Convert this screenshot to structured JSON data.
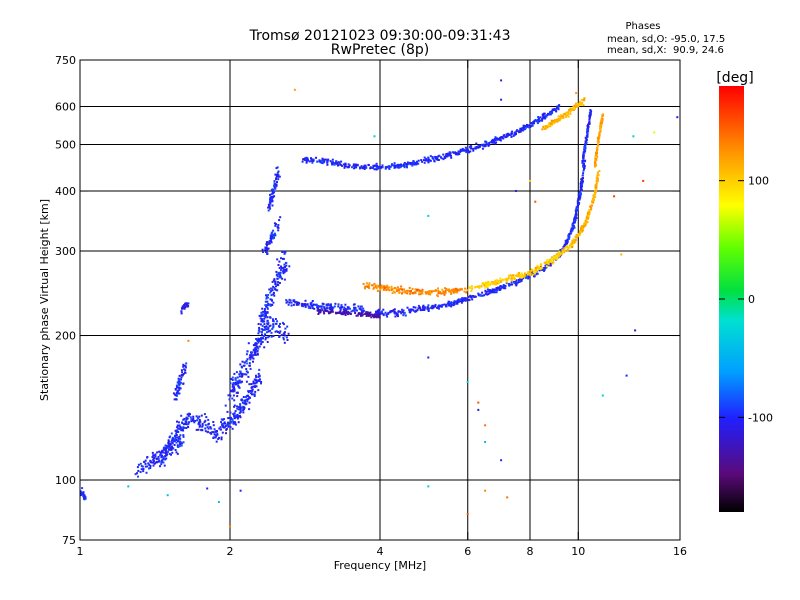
{
  "chart_data": {
    "type": "scatter",
    "title": "Tromsø 20121023 09:30:00-09:31:43",
    "subtitle": "RwPretec (8p)",
    "xlabel": "Frequency [MHz]",
    "ylabel": "Stationary phase Virtual Height [km]",
    "x_scale": "log",
    "y_scale": "log",
    "xlim": [
      1,
      16
    ],
    "ylim": [
      75,
      750
    ],
    "x_ticks": [
      1,
      2,
      4,
      6,
      8,
      10,
      16
    ],
    "y_ticks": [
      75,
      100,
      200,
      300,
      400,
      500,
      600,
      750
    ],
    "x_gridlines": [
      2,
      4,
      6,
      8,
      10
    ],
    "y_gridlines": [
      100,
      200,
      300,
      400,
      500,
      600
    ],
    "grid": true,
    "phase_stats": {
      "heading": "Phases",
      "line_o": "mean, sd,O: -95.0, 17.5",
      "line_x": "mean, sd,X:  90.9, 24.6"
    },
    "colorbar": {
      "label": "[deg]",
      "range": [
        -180,
        180
      ],
      "ticks": [
        100,
        0,
        -100
      ],
      "colormap": "rainbow"
    },
    "series": [
      {
        "traces": [
          {
            "f": [
              1.0,
              1.03
            ],
            "h": [
              95,
              91
            ],
            "phase": -100,
            "spread": 0.03
          },
          {
            "f": [
              1.3,
              1.45,
              1.6
            ],
            "h": [
              105,
              112,
              120
            ],
            "phase": -100,
            "spread": 0.05
          },
          {
            "f": [
              1.45,
              1.65,
              1.9
            ],
            "h": [
              110,
              135,
              125
            ],
            "phase": -100,
            "spread": 0.07
          },
          {
            "f": [
              1.55,
              1.62
            ],
            "h": [
              150,
              170
            ],
            "phase": -100,
            "spread": 0.05
          },
          {
            "f": [
              1.6,
              1.65
            ],
            "h": [
              225,
              235
            ],
            "phase": -110,
            "spread": 0.02
          },
          {
            "f": [
              1.9,
              2.1,
              2.3
            ],
            "h": [
              125,
              140,
              165
            ],
            "phase": -100,
            "spread": 0.06
          },
          {
            "f": [
              2.0,
              2.2,
              2.4,
              2.6
            ],
            "h": [
              150,
              180,
              210,
              200
            ],
            "phase": -100,
            "spread": 0.08
          },
          {
            "f": [
              2.3,
              2.45,
              2.6
            ],
            "h": [
              210,
              250,
              290
            ],
            "phase": -100,
            "spread": 0.08
          },
          {
            "f": [
              2.35,
              2.5
            ],
            "h": [
              300,
              340
            ],
            "phase": -100,
            "spread": 0.05
          },
          {
            "f": [
              2.4,
              2.5
            ],
            "h": [
              370,
              440
            ],
            "phase": -100,
            "spread": 0.04
          },
          {
            "f": [
              2.6,
              3.0,
              3.5,
              4.0,
              4.5
            ],
            "h": [
              235,
              230,
              228,
              222,
              223
            ],
            "phase": -100,
            "spread": 0.025
          },
          {
            "f": [
              3.0,
              3.5,
              4.0
            ],
            "h": [
              225,
              222,
              220
            ],
            "phase": -130,
            "spread": 0.015
          },
          {
            "f": [
              4.5,
              5.5,
              6.5,
              7.5,
              8.5
            ],
            "h": [
              225,
              232,
              245,
              258,
              275
            ],
            "phase": -100,
            "spread": 0.02
          },
          {
            "f": [
              8.5,
              9.3,
              9.8,
              10.1,
              10.3
            ],
            "h": [
              275,
              300,
              340,
              400,
              460
            ],
            "phase": -100,
            "spread": 0.02
          },
          {
            "f": [
              10.2,
              10.4,
              10.6
            ],
            "h": [
              460,
              520,
              590
            ],
            "phase": -100,
            "spread": 0.015
          },
          {
            "f": [
              3.7,
              4.2,
              5.0,
              6.0
            ],
            "h": [
              255,
              250,
              245,
              250
            ],
            "phase": 130,
            "spread": 0.025
          },
          {
            "f": [
              6.0,
              7.0,
              8.0,
              9.0,
              9.7
            ],
            "h": [
              250,
              260,
              270,
              290,
              310
            ],
            "phase": 100,
            "spread": 0.02
          },
          {
            "f": [
              9.7,
              10.3,
              10.7,
              11.0
            ],
            "h": [
              310,
              340,
              380,
              440
            ],
            "phase": 110,
            "spread": 0.02
          },
          {
            "f": [
              10.8,
              11.0,
              11.2
            ],
            "h": [
              450,
              520,
              580
            ],
            "phase": 120,
            "spread": 0.015
          },
          {
            "f": [
              2.8,
              3.2,
              3.5,
              4.0,
              4.5,
              5.0,
              5.5
            ],
            "h": [
              465,
              460,
              450,
              448,
              452,
              465,
              475
            ],
            "phase": -100,
            "spread": 0.02
          },
          {
            "f": [
              5.5,
              6.5,
              7.5,
              8.5,
              9.2
            ],
            "h": [
              475,
              500,
              530,
              570,
              600
            ],
            "phase": -100,
            "spread": 0.02
          },
          {
            "f": [
              8.5,
              9.5,
              10.3
            ],
            "h": [
              540,
              580,
              620
            ],
            "phase": 110,
            "spread": 0.02
          }
        ],
        "scattered_points": [
          {
            "f": 2.7,
            "h": 650,
            "phase": 120
          },
          {
            "f": 7.0,
            "h": 680,
            "phase": -110
          },
          {
            "f": 5.0,
            "h": 355,
            "phase": -30
          },
          {
            "f": 5.0,
            "h": 180,
            "phase": -100
          },
          {
            "f": 6.0,
            "h": 160,
            "phase": -30
          },
          {
            "f": 6.3,
            "h": 145,
            "phase": 150
          },
          {
            "f": 6.3,
            "h": 140,
            "phase": -110
          },
          {
            "f": 6.5,
            "h": 130,
            "phase": 140
          },
          {
            "f": 6.5,
            "h": 120,
            "phase": -40
          },
          {
            "f": 7.0,
            "h": 110,
            "phase": -100
          },
          {
            "f": 6.5,
            "h": 95,
            "phase": 130
          },
          {
            "f": 7.2,
            "h": 92,
            "phase": 140
          },
          {
            "f": 6.0,
            "h": 85,
            "phase": 150
          },
          {
            "f": 5.0,
            "h": 97,
            "phase": -30
          },
          {
            "f": 12.2,
            "h": 295,
            "phase": 110
          },
          {
            "f": 11.8,
            "h": 390,
            "phase": 160
          },
          {
            "f": 12.9,
            "h": 520,
            "phase": -30
          },
          {
            "f": 13.5,
            "h": 420,
            "phase": 160
          },
          {
            "f": 14.2,
            "h": 530,
            "phase": 70
          },
          {
            "f": 15.8,
            "h": 570,
            "phase": -110
          },
          {
            "f": 13.0,
            "h": 205,
            "phase": -120
          },
          {
            "f": 12.5,
            "h": 165,
            "phase": -100
          },
          {
            "f": 11.2,
            "h": 150,
            "phase": -30
          },
          {
            "f": 8.0,
            "h": 420,
            "phase": 100
          },
          {
            "f": 8.2,
            "h": 380,
            "phase": 150
          },
          {
            "f": 7.5,
            "h": 400,
            "phase": -100
          },
          {
            "f": 2.1,
            "h": 95,
            "phase": -100
          },
          {
            "f": 1.9,
            "h": 90,
            "phase": -40
          },
          {
            "f": 1.8,
            "h": 96,
            "phase": -100
          },
          {
            "f": 2.0,
            "h": 80,
            "phase": 130
          },
          {
            "f": 1.5,
            "h": 93,
            "phase": -40
          },
          {
            "f": 1.25,
            "h": 97,
            "phase": -40
          },
          {
            "f": 1.65,
            "h": 195,
            "phase": 130
          },
          {
            "f": 7.0,
            "h": 620,
            "phase": -100
          },
          {
            "f": 9.9,
            "h": 640,
            "phase": 120
          },
          {
            "f": 3.9,
            "h": 520,
            "phase": -30
          }
        ]
      }
    ]
  }
}
